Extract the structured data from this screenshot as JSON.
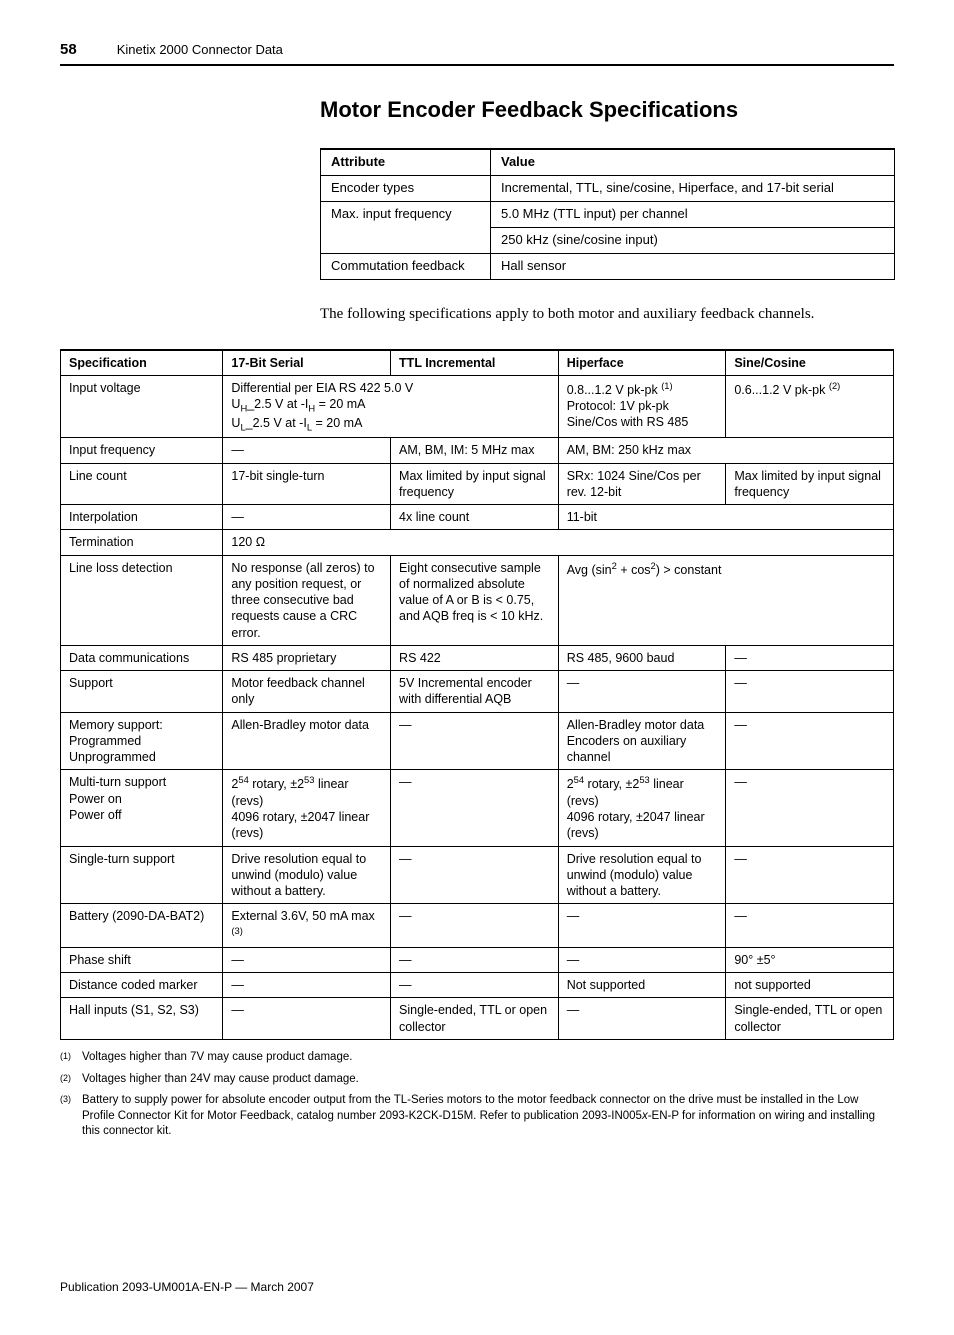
{
  "header": {
    "page_number": "58",
    "title": "Kinetix 2000 Connector Data"
  },
  "section_title": "Motor Encoder Feedback Specifications",
  "table1": {
    "headers": [
      "Attribute",
      "Value"
    ],
    "rows": [
      {
        "attr": "Encoder types",
        "vals": [
          "Incremental, TTL, sine/cosine, Hiperface, and 17-bit serial"
        ]
      },
      {
        "attr": "Max. input frequency",
        "vals": [
          "5.0 MHz (TTL input) per channel",
          "250 kHz (sine/cosine input)"
        ]
      },
      {
        "attr": "Commutation feedback",
        "vals": [
          "Hall sensor"
        ]
      }
    ]
  },
  "body_para": "The following specifications apply to both motor and auxiliary feedback channels.",
  "spec_table": {
    "headers": [
      "Specification",
      "17-Bit Serial",
      "TTL Incremental",
      "Hiperface",
      "Sine/Cosine"
    ],
    "rows": {
      "input_voltage": {
        "label": "Input voltage",
        "serial_html": "Differential per EIA RS 422 5.0 V<br>U<sub>H</sub>_2.5 V at -I<sub>H</sub> = 20 mA<br>U<sub>L</sub>_2.5 V at -I<sub>L</sub> = 20 mA",
        "hiperface_html": "0.8...1.2 V pk-pk <span class='supexp'>(1)</span><br>Protocol: 1V pk-pk Sine/Cos with RS 485",
        "sine_html": "0.6...1.2 V pk-pk <span class='supexp'>(2)</span>"
      },
      "input_freq": {
        "label": "Input frequency",
        "serial": "—",
        "ttl": "AM, BM, IM: 5 MHz max",
        "hiperface_span": "AM, BM: 250 kHz max"
      },
      "line_count": {
        "label": "Line count",
        "serial": "17-bit single-turn",
        "ttl": "Max limited by input signal frequency",
        "hiperface": "SRx: 1024 Sine/Cos per rev. 12-bit",
        "sine": "Max limited by input signal frequency"
      },
      "interpolation": {
        "label": "Interpolation",
        "serial": "—",
        "ttl": "4x line count",
        "hiperface_span": "11-bit"
      },
      "termination": {
        "label": "Termination",
        "all": "120 Ω"
      },
      "line_loss": {
        "label": "Line loss detection",
        "serial": "No response (all zeros) to any position request, or three consecutive bad requests cause a CRC error.",
        "ttl": "Eight consecutive sample of normalized absolute value of A or B is < 0.75, and AQB freq is < 10 kHz.",
        "hiperface_span_html": "Avg (sin<span class='supexp'>2</span> + cos<span class='supexp'>2</span>) > constant"
      },
      "data_comm": {
        "label": "Data communications",
        "serial": "RS 485 proprietary",
        "ttl": "RS 422",
        "hiperface": "RS 485, 9600 baud",
        "sine": "—"
      },
      "support": {
        "label": "Support",
        "serial": "Motor feedback channel only",
        "ttl": "5V Incremental encoder with differential AQB",
        "hiperface": "—",
        "sine": "—"
      },
      "memory": {
        "label_html": "Memory support:<br>Programmed<br>Unprogrammed",
        "serial": "Allen-Bradley motor data",
        "ttl": "—",
        "hiperface": "Allen-Bradley motor data Encoders on auxiliary channel",
        "sine": "—"
      },
      "multi_turn": {
        "label_html": "Multi-turn support<br>Power on<br>Power off",
        "serial_html": "2<span class='supexp'>54</span> rotary, ±2<span class='supexp'>53</span> linear (revs)<br>4096 rotary, ±2047 linear (revs)",
        "ttl": "—",
        "hiperface_html": "2<span class='supexp'>54</span> rotary, ±2<span class='supexp'>53</span> linear (revs)<br>4096 rotary, ±2047 linear (revs)",
        "sine": "—"
      },
      "single_turn": {
        "label": "Single-turn support",
        "serial": "Drive resolution equal to unwind (modulo) value without a battery.",
        "ttl": "—",
        "hiperface": "Drive resolution equal to unwind (modulo) value without a battery.",
        "sine": "—"
      },
      "battery": {
        "label": "Battery (2090-DA-BAT2)",
        "serial_html": "External 3.6V, 50 mA max <span class='supexp'>(3)</span>",
        "ttl": "—",
        "hiperface": "—",
        "sine": "—"
      },
      "phase_shift": {
        "label": "Phase shift",
        "serial": "—",
        "ttl": "—",
        "hiperface": "—",
        "sine": "90° ±5°"
      },
      "dcm": {
        "label": "Distance coded marker",
        "serial": "—",
        "ttl": "—",
        "hiperface": "Not supported",
        "sine": "not supported"
      },
      "hall": {
        "label": "Hall inputs (S1, S2, S3)",
        "serial": "—",
        "ttl": "Single-ended, TTL or open collector",
        "hiperface": "—",
        "sine": "Single-ended, TTL or open collector"
      }
    }
  },
  "footnotes": {
    "f1": "Voltages higher than 7V may cause product damage.",
    "f2": "Voltages higher than 24V may cause product damage.",
    "f3_html": "Battery to supply power for absolute encoder output from the TL-Series motors to the motor feedback connector on the drive must be installed in the Low Profile Connector Kit for Motor Feedback, catalog number 2093-K2CK-D15M. Refer to publication 2093-IN005<i>x</i>-EN-P for information on wiring and installing this connector kit."
  },
  "pub_line": "Publication 2093-UM001A-EN-P — March 2007"
}
